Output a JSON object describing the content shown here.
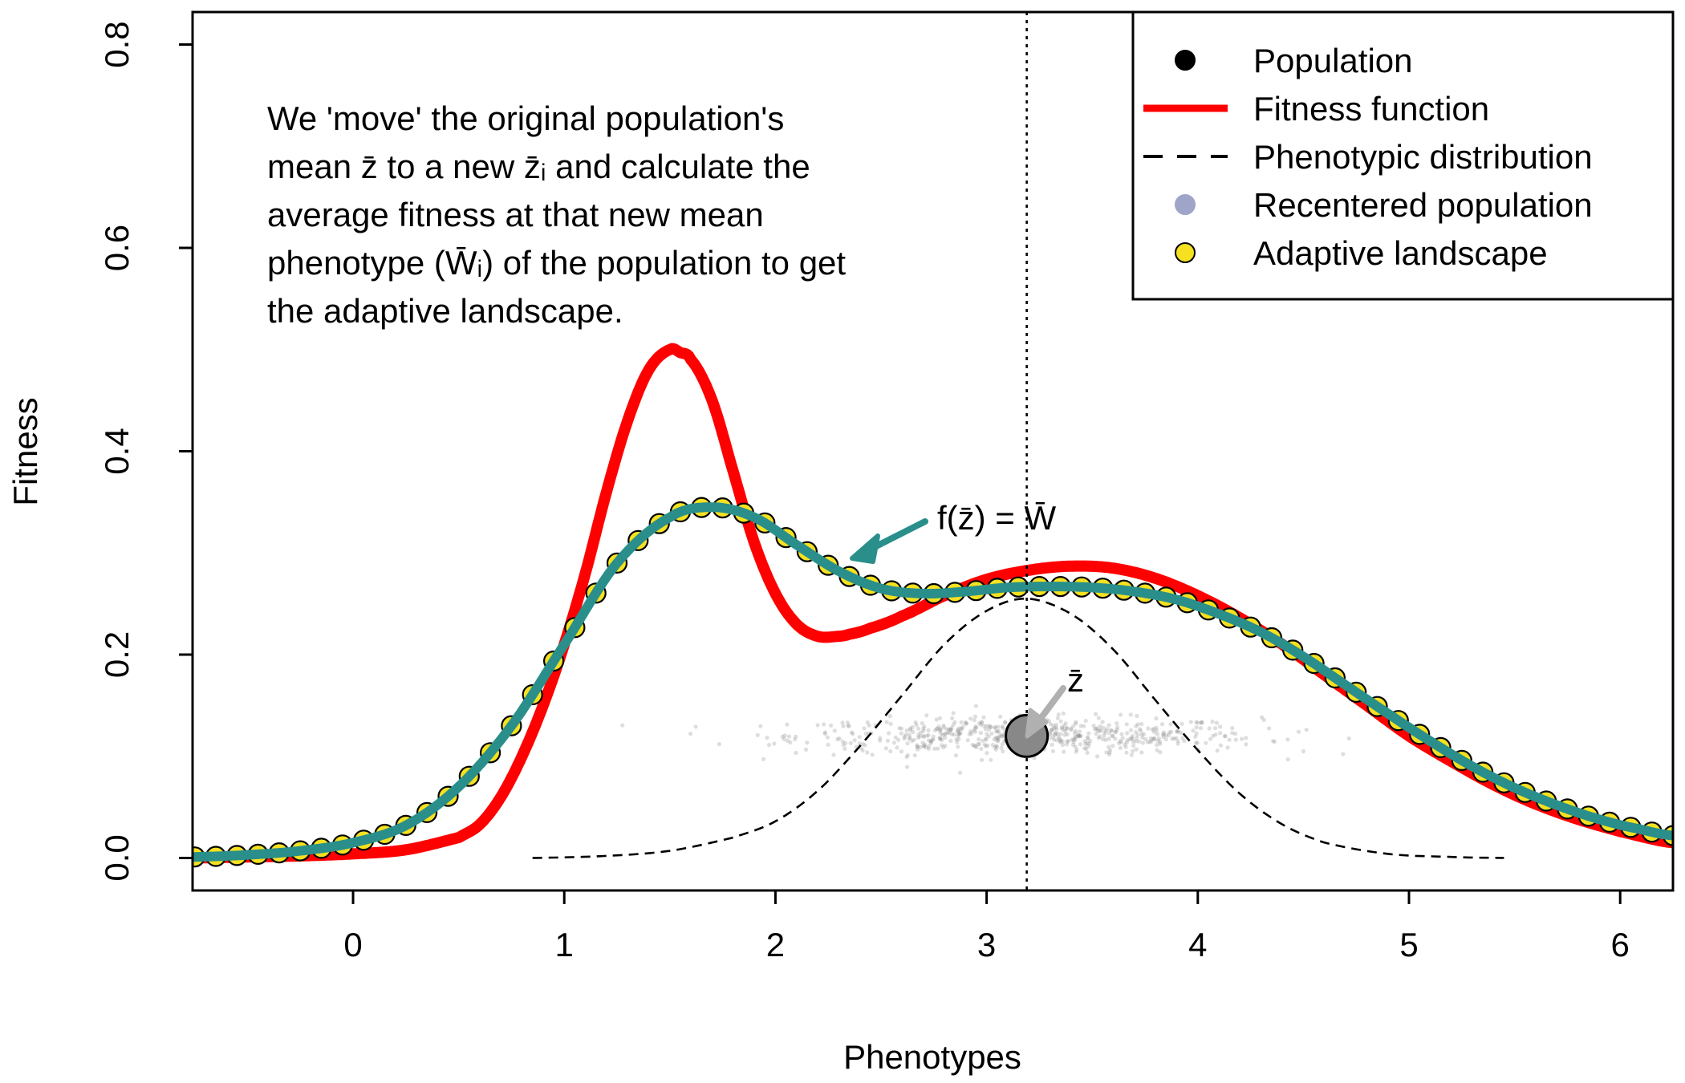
{
  "chart_data": {
    "type": "line",
    "title": "",
    "xlabel": "Phenotypes",
    "ylabel": "Fitness",
    "xlim": [
      -0.76,
      6.25
    ],
    "ylim": [
      -0.032,
      0.832
    ],
    "x_ticks": [
      0,
      1,
      2,
      3,
      4,
      5,
      6
    ],
    "x_tick_labels": [
      "0",
      "1",
      "2",
      "3",
      "4",
      "5",
      "6"
    ],
    "y_ticks": [
      0.0,
      0.2,
      0.4,
      0.6,
      0.8
    ],
    "y_tick_labels": [
      "0.0",
      "0.2",
      "0.4",
      "0.6",
      "0.8"
    ],
    "grid": false,
    "legend_position": "top-right",
    "legend": [
      {
        "label": "Population",
        "kind": "point",
        "fill": "#000000",
        "stroke": "#000000"
      },
      {
        "label": "Fitness function",
        "kind": "line",
        "color": "#ff0000"
      },
      {
        "label": "Phenotypic distribution",
        "kind": "dashed",
        "color": "#000000"
      },
      {
        "label": "Recentered population",
        "kind": "point",
        "fill": "#9ea5c8",
        "stroke": "#9ea5c8"
      },
      {
        "label": "Adaptive landscape",
        "kind": "point",
        "fill": "#f5e120",
        "stroke": "#000000"
      }
    ],
    "colors": {
      "fitness_function": "#ff0000",
      "adaptive_landscape_line": "#2a8f8a",
      "adaptive_landscape_points": "#f5e120",
      "phenotypic_distribution": "#000000",
      "population_cloud": "#8a8a8a",
      "mean_point": "#888888",
      "annotation_arrow_teal": "#2a8f8a",
      "annotation_arrow_grey": "#b0b0b0"
    },
    "mean_phenotype": 3.19,
    "mean_point_y": 0.12,
    "series": [
      {
        "name": "Fitness function",
        "x": [
          -0.75,
          -0.5,
          -0.25,
          0,
          0.25,
          0.5,
          0.6,
          0.7,
          0.8,
          0.9,
          1.0,
          1.1,
          1.2,
          1.3,
          1.4,
          1.5,
          1.55,
          1.6,
          1.7,
          1.8,
          1.9,
          2.0,
          2.1,
          2.2,
          2.3,
          2.35,
          2.45,
          2.6,
          2.8,
          3.0,
          3.2,
          3.4,
          3.6,
          3.8,
          4.0,
          4.2,
          4.4,
          4.6,
          4.8,
          5.0,
          5.2,
          5.4,
          5.6,
          5.8,
          6.0,
          6.25
        ],
        "y": [
          0.0,
          0.001,
          0.002,
          0.004,
          0.008,
          0.02,
          0.033,
          0.06,
          0.1,
          0.15,
          0.21,
          0.28,
          0.36,
          0.43,
          0.48,
          0.5,
          0.497,
          0.49,
          0.45,
          0.38,
          0.31,
          0.26,
          0.23,
          0.218,
          0.218,
          0.22,
          0.226,
          0.238,
          0.258,
          0.274,
          0.283,
          0.287,
          0.285,
          0.275,
          0.258,
          0.236,
          0.21,
          0.18,
          0.15,
          0.12,
          0.095,
          0.072,
          0.053,
          0.038,
          0.026,
          0.015
        ]
      },
      {
        "name": "Adaptive landscape",
        "x": [
          -0.75,
          -0.5,
          -0.25,
          0,
          0.25,
          0.5,
          0.75,
          1.0,
          1.25,
          1.5,
          1.7,
          1.9,
          2.1,
          2.3,
          2.5,
          2.7,
          2.9,
          3.1,
          3.3,
          3.5,
          3.7,
          3.9,
          4.1,
          4.3,
          4.5,
          4.7,
          4.9,
          5.1,
          5.3,
          5.5,
          5.7,
          5.9,
          6.1,
          6.25
        ],
        "y": [
          0.001,
          0.003,
          0.007,
          0.015,
          0.032,
          0.07,
          0.13,
          0.21,
          0.29,
          0.335,
          0.345,
          0.335,
          0.308,
          0.282,
          0.265,
          0.26,
          0.262,
          0.266,
          0.267,
          0.266,
          0.262,
          0.254,
          0.24,
          0.222,
          0.198,
          0.17,
          0.142,
          0.115,
          0.09,
          0.069,
          0.052,
          0.038,
          0.028,
          0.022
        ]
      },
      {
        "name": "Phenotypic distribution",
        "x": [
          0.85,
          1.2,
          1.5,
          1.8,
          2.0,
          2.2,
          2.4,
          2.6,
          2.8,
          3.0,
          3.19,
          3.4,
          3.6,
          3.8,
          4.0,
          4.2,
          4.4,
          4.6,
          4.9,
          5.2,
          5.45
        ],
        "y": [
          0.0,
          0.002,
          0.007,
          0.02,
          0.036,
          0.066,
          0.11,
          0.16,
          0.21,
          0.243,
          0.255,
          0.24,
          0.205,
          0.155,
          0.106,
          0.063,
          0.033,
          0.015,
          0.004,
          0.001,
          0.0
        ]
      }
    ],
    "annotations": {
      "description_lines": [
        "We 'move' the original population's",
        "mean z̄ to a new z̄ᵢ and calculate the",
        "average fitness at that new mean",
        "phenotype (W̄ᵢ) of the population to get",
        "the adaptive landscape."
      ],
      "equation_label": "f(z̄) = W̄",
      "mean_label": "z̄"
    }
  }
}
